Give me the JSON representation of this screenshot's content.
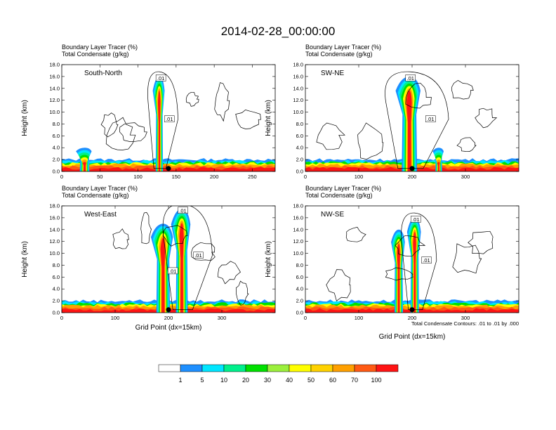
{
  "title": "2014-02-28_00:00:00",
  "colors": {
    "levels": [
      "#ffffff",
      "#1e8fff",
      "#00e6ff",
      "#00f08c",
      "#00e000",
      "#9bf03c",
      "#ffff00",
      "#ffd200",
      "#ffa000",
      "#ff5a14",
      "#ff1414"
    ],
    "contour": "#000000"
  },
  "colorbar": {
    "labels": [
      "1",
      "5",
      "10",
      "20",
      "30",
      "40",
      "50",
      "60",
      "70",
      "100"
    ]
  },
  "footnote": "Total Condensate Contours: .01 to .01 by .000",
  "chart_data": [
    {
      "type": "heatmap",
      "header_line1": "Boundary Layer Tracer    (%)",
      "header_line2": "Total Condensate   (g/kg)",
      "label": "South-North",
      "ylabel": "Height (km)",
      "xlabel": "",
      "ylim": [
        0,
        18
      ],
      "xlim": [
        0,
        280
      ],
      "xticks": [
        "0",
        "50",
        "100",
        "150",
        "200",
        "250"
      ],
      "yticks": [
        "0.0",
        "2.0",
        "4.0",
        "6.0",
        "8.0",
        "10.0",
        "12.0",
        "14.0",
        "16.0",
        "18.0"
      ],
      "marker_x": 140,
      "contour_labels": [
        ".01",
        ".01"
      ],
      "plumes": [
        {
          "center": 128,
          "width": 6,
          "top": 16
        },
        {
          "center": 30,
          "width": 8,
          "top": 4
        }
      ]
    },
    {
      "type": "heatmap",
      "header_line1": "Boundary Layer Tracer    (%)",
      "header_line2": "Total Condensate   (g/kg)",
      "label": "SW-NE",
      "ylabel": "Height (km)",
      "xlabel": "",
      "ylim": [
        0,
        18
      ],
      "xlim": [
        0,
        400
      ],
      "xticks": [
        "0",
        "100",
        "200",
        "300"
      ],
      "yticks": [
        "0.0",
        "2.0",
        "4.0",
        "6.0",
        "8.0",
        "10.0",
        "12.0",
        "14.0",
        "16.0",
        "18.0"
      ],
      "marker_x": 200,
      "contour_labels": [
        ".01",
        ".01"
      ],
      "plumes": [
        {
          "center": 195,
          "width": 18,
          "top": 16
        },
        {
          "center": 250,
          "width": 8,
          "top": 4
        }
      ]
    },
    {
      "type": "heatmap",
      "header_line1": "Boundary Layer Tracer    (%)",
      "header_line2": "Total Condensate   (g/kg)",
      "label": "West-East",
      "ylabel": "Height (km)",
      "xlabel": "Grid Point (dx=15km)",
      "ylim": [
        0,
        18
      ],
      "xlim": [
        0,
        400
      ],
      "xticks": [
        "0",
        "100",
        "200",
        "300"
      ],
      "yticks": [
        "0.0",
        "2.0",
        "4.0",
        "6.0",
        "8.0",
        "10.0",
        "12.0",
        "14.0",
        "16.0",
        "18.0"
      ],
      "marker_x": 200,
      "contour_labels": [
        ".01",
        ".01",
        ".01"
      ],
      "plumes": [
        {
          "center": 225,
          "width": 14,
          "top": 17.5
        },
        {
          "center": 190,
          "width": 16,
          "top": 15
        }
      ]
    },
    {
      "type": "heatmap",
      "header_line1": "Boundary Layer Tracer    (%)",
      "header_line2": "Total Condensate   (g/kg)",
      "label": "NW-SE",
      "ylabel": "Height (km)",
      "xlabel": "Grid Point (dx=15km)",
      "ylim": [
        0,
        18
      ],
      "xlim": [
        0,
        400
      ],
      "xticks": [
        "0",
        "100",
        "200",
        "300"
      ],
      "yticks": [
        "0.0",
        "2.0",
        "4.0",
        "6.0",
        "8.0",
        "10.0",
        "12.0",
        "14.0",
        "16.0",
        "18.0"
      ],
      "marker_x": 200,
      "contour_labels": [
        ".01",
        ".01"
      ],
      "plumes": [
        {
          "center": 205,
          "width": 10,
          "top": 16
        },
        {
          "center": 175,
          "width": 10,
          "top": 14
        }
      ]
    }
  ]
}
